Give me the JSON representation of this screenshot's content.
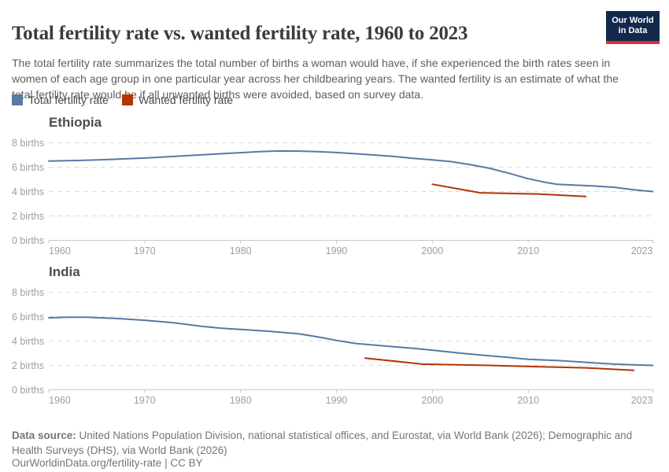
{
  "header": {
    "title": "Total fertility rate vs. wanted fertility rate, 1960 to 2023",
    "logo": {
      "line1": "Our World",
      "line2": "in Data",
      "bg_color": "#12294d",
      "accent_color": "#dc2e32"
    }
  },
  "subtitle": "The total fertility rate summarizes the total number of births a woman would have, if she experienced the birth rates seen in women of each age group in one particular year across her childbearing years. The wanted fertility is an estimate of what the total fertility rate would be if all unwanted births were avoided, based on survey data.",
  "legend": {
    "items": [
      {
        "label": "Total fertility rate",
        "color": "#5879a3"
      },
      {
        "label": "Wanted fertility rate",
        "color": "#b13507"
      }
    ]
  },
  "chart_data": [
    {
      "type": "line",
      "title": "Ethiopia",
      "xlabel": "",
      "ylabel": "births",
      "xlim": [
        1960,
        2023
      ],
      "ylim": [
        0,
        8.8
      ],
      "x_ticks": [
        1960,
        1970,
        1980,
        1990,
        2000,
        2010,
        2023
      ],
      "y_ticks": [
        0,
        2,
        4,
        6,
        8
      ],
      "y_tick_suffix": " births",
      "grid": "horizontal-dashed",
      "legend_position": "top-of-figure",
      "series": [
        {
          "name": "Total fertility rate",
          "color": "#5879a3",
          "points": [
            [
              1960,
              6.5
            ],
            [
              1963,
              6.55
            ],
            [
              1966,
              6.62
            ],
            [
              1970,
              6.75
            ],
            [
              1973,
              6.88
            ],
            [
              1976,
              7.02
            ],
            [
              1979,
              7.15
            ],
            [
              1982,
              7.28
            ],
            [
              1984,
              7.33
            ],
            [
              1986,
              7.32
            ],
            [
              1988,
              7.28
            ],
            [
              1990,
              7.2
            ],
            [
              1993,
              7.05
            ],
            [
              1996,
              6.88
            ],
            [
              1998,
              6.73
            ],
            [
              2000,
              6.6
            ],
            [
              2002,
              6.45
            ],
            [
              2004,
              6.2
            ],
            [
              2006,
              5.9
            ],
            [
              2008,
              5.5
            ],
            [
              2010,
              5.05
            ],
            [
              2012,
              4.72
            ],
            [
              2013,
              4.6
            ],
            [
              2015,
              4.52
            ],
            [
              2017,
              4.45
            ],
            [
              2019,
              4.35
            ],
            [
              2021,
              4.15
            ],
            [
              2023,
              4.0
            ]
          ]
        },
        {
          "name": "Wanted fertility rate",
          "color": "#b13507",
          "points": [
            [
              2000,
              4.6
            ],
            [
              2005,
              3.9
            ],
            [
              2011,
              3.8
            ],
            [
              2016,
              3.6
            ]
          ]
        }
      ]
    },
    {
      "type": "line",
      "title": "India",
      "xlabel": "",
      "ylabel": "births",
      "xlim": [
        1960,
        2023
      ],
      "ylim": [
        0,
        8.8
      ],
      "x_ticks": [
        1960,
        1970,
        1980,
        1990,
        2000,
        2010,
        2023
      ],
      "y_ticks": [
        0,
        2,
        4,
        6,
        8
      ],
      "y_tick_suffix": " births",
      "grid": "horizontal-dashed",
      "legend_position": "top-of-figure",
      "series": [
        {
          "name": "Total fertility rate",
          "color": "#5879a3",
          "points": [
            [
              1960,
              5.9
            ],
            [
              1962,
              5.95
            ],
            [
              1964,
              5.95
            ],
            [
              1967,
              5.85
            ],
            [
              1970,
              5.7
            ],
            [
              1973,
              5.5
            ],
            [
              1976,
              5.2
            ],
            [
              1978,
              5.05
            ],
            [
              1980,
              4.95
            ],
            [
              1983,
              4.8
            ],
            [
              1986,
              4.6
            ],
            [
              1988,
              4.35
            ],
            [
              1990,
              4.05
            ],
            [
              1992,
              3.8
            ],
            [
              1995,
              3.6
            ],
            [
              1998,
              3.4
            ],
            [
              2000,
              3.25
            ],
            [
              2003,
              3.0
            ],
            [
              2005,
              2.85
            ],
            [
              2008,
              2.65
            ],
            [
              2010,
              2.5
            ],
            [
              2013,
              2.4
            ],
            [
              2015,
              2.3
            ],
            [
              2017,
              2.2
            ],
            [
              2019,
              2.1
            ],
            [
              2021,
              2.05
            ],
            [
              2023,
              2.0
            ]
          ]
        },
        {
          "name": "Wanted fertility rate",
          "color": "#b13507",
          "points": [
            [
              1993,
              2.6
            ],
            [
              1999,
              2.1
            ],
            [
              2006,
              2.0
            ],
            [
              2011,
              1.9
            ],
            [
              2016,
              1.8
            ],
            [
              2021,
              1.6
            ]
          ]
        }
      ]
    }
  ],
  "footer": {
    "source_label": "Data source:",
    "source_text": " United Nations Population Division, national statistical offices, and Eurostat, via World Bank (2026); Demographic and Health Surveys (DHS), via World Bank (2026)",
    "link_text": "OurWorldinData.org/fertility-rate | CC BY"
  },
  "colors": {
    "gridline": "#dcdcdc",
    "axis": "#c8c8c8",
    "tick_label": "#9e9e9e"
  }
}
